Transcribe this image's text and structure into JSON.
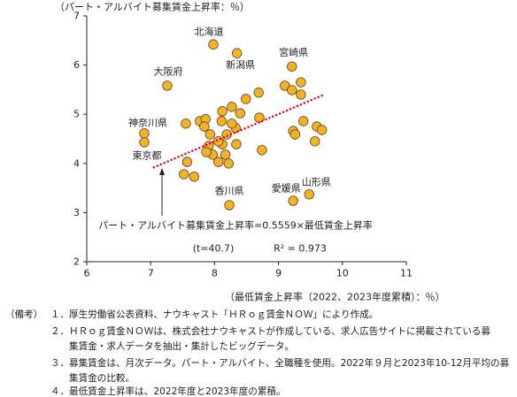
{
  "chart_data": {
    "type": "scatter",
    "ylabel": "（パート・アルバイト募集賃金上昇率：％）",
    "xlabel": "（最低賃金上昇率（2022、2023年度累積）：％）",
    "xlim": [
      6,
      11
    ],
    "ylim": [
      2,
      7
    ],
    "xticks": [
      6,
      7,
      8,
      9,
      10,
      11
    ],
    "yticks": [
      2,
      3,
      4,
      5,
      6,
      7
    ],
    "grid": false,
    "points": [
      {
        "x": 7.98,
        "y": 6.42,
        "label": "北海道"
      },
      {
        "x": 8.35,
        "y": 6.24,
        "label": "新潟県"
      },
      {
        "x": 9.21,
        "y": 5.97,
        "label": "宮崎県"
      },
      {
        "x": 7.26,
        "y": 5.58,
        "label": "大阪府"
      },
      {
        "x": 6.9,
        "y": 4.61,
        "label": "神奈川県"
      },
      {
        "x": 6.9,
        "y": 4.43,
        "label": "東京都"
      },
      {
        "x": 8.23,
        "y": 3.15,
        "label": "香川県"
      },
      {
        "x": 9.23,
        "y": 3.24,
        "label": "愛媛県"
      },
      {
        "x": 9.48,
        "y": 3.37,
        "label": "山形県"
      },
      {
        "x": 7.55,
        "y": 4.81
      },
      {
        "x": 7.57,
        "y": 4.03
      },
      {
        "x": 7.52,
        "y": 3.78
      },
      {
        "x": 7.68,
        "y": 3.73
      },
      {
        "x": 7.77,
        "y": 4.86
      },
      {
        "x": 7.86,
        "y": 4.9
      },
      {
        "x": 7.93,
        "y": 4.59
      },
      {
        "x": 7.91,
        "y": 4.36
      },
      {
        "x": 7.97,
        "y": 4.18
      },
      {
        "x": 8.06,
        "y": 4.03
      },
      {
        "x": 8.12,
        "y": 4.39
      },
      {
        "x": 8.11,
        "y": 4.86
      },
      {
        "x": 8.12,
        "y": 5.06
      },
      {
        "x": 8.19,
        "y": 4.59
      },
      {
        "x": 8.22,
        "y": 4.0
      },
      {
        "x": 8.27,
        "y": 5.15
      },
      {
        "x": 8.33,
        "y": 4.72
      },
      {
        "x": 8.34,
        "y": 4.39
      },
      {
        "x": 8.4,
        "y": 5.02
      },
      {
        "x": 8.49,
        "y": 5.31
      },
      {
        "x": 8.69,
        "y": 5.44
      },
      {
        "x": 8.7,
        "y": 4.93
      },
      {
        "x": 8.74,
        "y": 4.27
      },
      {
        "x": 9.1,
        "y": 5.58
      },
      {
        "x": 9.21,
        "y": 5.49
      },
      {
        "x": 9.35,
        "y": 5.65
      },
      {
        "x": 9.35,
        "y": 5.4
      },
      {
        "x": 9.39,
        "y": 4.86
      },
      {
        "x": 9.23,
        "y": 4.66
      },
      {
        "x": 9.26,
        "y": 4.59
      },
      {
        "x": 9.6,
        "y": 4.75
      },
      {
        "x": 9.68,
        "y": 4.68
      },
      {
        "x": 9.57,
        "y": 4.45
      },
      {
        "x": 8.06,
        "y": 4.45
      },
      {
        "x": 7.87,
        "y": 4.23
      },
      {
        "x": 8.17,
        "y": 4.18
      },
      {
        "x": 7.84,
        "y": 4.75
      },
      {
        "x": 8.27,
        "y": 4.81
      }
    ],
    "trendline": {
      "slope": 0.5559,
      "intercept": 0,
      "x_range": [
        7.05,
        9.7
      ]
    },
    "annotations": {
      "equation": "パート・アルバイト募集賃金上昇率=0.5559×最低賃金上昇率",
      "t_stat": "(t=40.7)",
      "r_squared": "R² = 0.973"
    },
    "colors": {
      "marker_fill": "#f5b224",
      "marker_edge": "#5a4620",
      "trendline": "#e60012"
    }
  },
  "notes": {
    "heading": "（備考）",
    "items": [
      {
        "num": "１．",
        "lines": [
          "厚生労働省公表資料、ナウキャスト「ＨＲｏｇ賃金ＮＯＷ」により作成。"
        ]
      },
      {
        "num": "２．",
        "lines": [
          "ＨＲｏｇ賃金ＮＯＷは、株式会社ナウキャストが作成している、求人広告サイトに掲載されている募",
          "集賃金・求人データを抽出・集計したビッグデータ。"
        ]
      },
      {
        "num": "３．",
        "lines": [
          "募集賃金は、月次データ。パート・アルバイト、全職種を使用。2022年９月と2023年10-12月平均の募",
          "集賃金の比較。"
        ]
      },
      {
        "num": "４．",
        "lines": [
          "最低賃金上昇率は、2022年度と2023年度の累積。"
        ]
      }
    ]
  }
}
